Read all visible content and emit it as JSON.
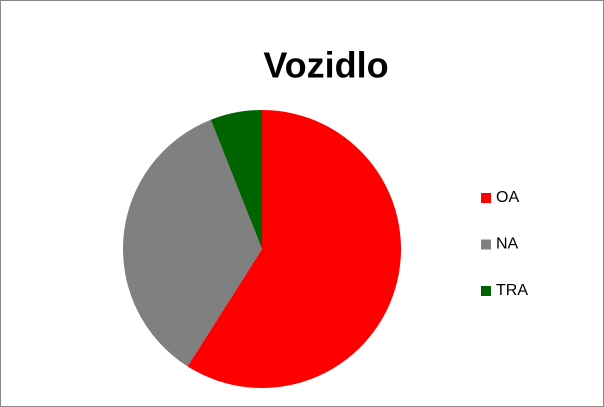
{
  "chart_data": {
    "type": "pie",
    "title": "Vozidlo",
    "categories": [
      "OA",
      "NA",
      "TRA"
    ],
    "values": [
      59,
      35,
      6
    ],
    "colors": [
      "#ff0000",
      "#808080",
      "#006400"
    ],
    "legend": "right"
  }
}
